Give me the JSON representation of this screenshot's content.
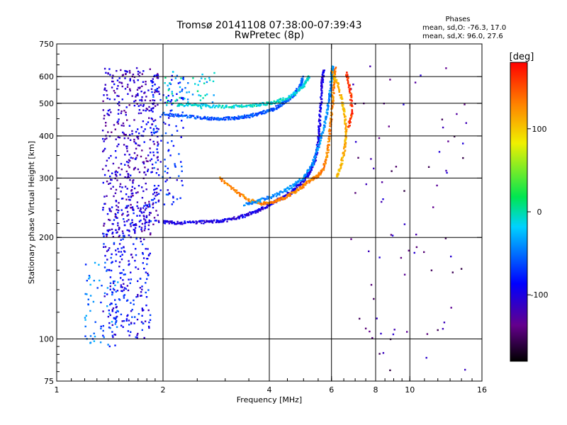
{
  "title_line1": "Tromsø 20141108 07:38:00-07:39:43",
  "title_line2": "RwPretec (8p)",
  "stats": {
    "heading": "Phases",
    "line_o": "mean, sd,O: -76.3, 17.0",
    "line_x": "mean, sd,X:  96.0, 27.6"
  },
  "colorbar": {
    "label": "[deg]",
    "range": [
      -180,
      180
    ],
    "ticks": [
      {
        "value": 100,
        "label": "100"
      },
      {
        "value": 0,
        "label": "0"
      },
      {
        "value": -100,
        "label": "-100"
      }
    ]
  },
  "chart_data": {
    "type": "scatter",
    "title": "Tromsø 20141108 07:38:00-07:39:43",
    "subtitle": "RwPretec (8p)",
    "xlabel": "Frequency [MHz]",
    "ylabel": "Stationary phase Virtual Height [km]",
    "xscale": "log",
    "yscale": "log",
    "xlim": [
      1,
      16
    ],
    "ylim": [
      75,
      750
    ],
    "xticks": [
      {
        "value": 1,
        "label": "1"
      },
      {
        "value": 2,
        "label": "2"
      },
      {
        "value": 4,
        "label": "4"
      },
      {
        "value": 6,
        "label": "6"
      },
      {
        "value": 8,
        "label": "8"
      },
      {
        "value": 10,
        "label": "10"
      },
      {
        "value": 16,
        "label": "16"
      }
    ],
    "yticks": [
      {
        "value": 75,
        "label": "75"
      },
      {
        "value": 100,
        "label": "100"
      },
      {
        "value": 200,
        "label": "200"
      },
      {
        "value": 300,
        "label": "300"
      },
      {
        "value": 400,
        "label": "400"
      },
      {
        "value": 500,
        "label": "500"
      },
      {
        "value": 600,
        "label": "600"
      },
      {
        "value": 750,
        "label": "750"
      }
    ],
    "grid_x": [
      2,
      4,
      6,
      8,
      10
    ],
    "grid_y": [
      100,
      200,
      300,
      400,
      500,
      600
    ],
    "color_variable": "phase [deg]",
    "traces": [
      {
        "points": [
          [
            2.0,
            222
          ],
          [
            2.2,
            221
          ],
          [
            2.5,
            222
          ],
          [
            2.8,
            223
          ],
          [
            3.1,
            226
          ],
          [
            3.4,
            232
          ],
          [
            3.7,
            240
          ],
          [
            4.0,
            250
          ],
          [
            4.3,
            260
          ],
          [
            4.6,
            272
          ],
          [
            4.9,
            288
          ],
          [
            5.2,
            310
          ],
          [
            5.4,
            340
          ],
          [
            5.5,
            380
          ],
          [
            5.55,
            430
          ],
          [
            5.6,
            500
          ],
          [
            5.65,
            580
          ],
          [
            5.7,
            630
          ]
        ],
        "phase": -100
      },
      {
        "points": [
          [
            2.9,
            300
          ],
          [
            3.2,
            275
          ],
          [
            3.5,
            258
          ],
          [
            3.8,
            252
          ],
          [
            4.1,
            255
          ],
          [
            4.4,
            262
          ],
          [
            4.7,
            272
          ],
          [
            5.0,
            285
          ],
          [
            5.3,
            298
          ],
          [
            5.5,
            305
          ],
          [
            5.7,
            320
          ],
          [
            5.85,
            360
          ],
          [
            5.95,
            420
          ],
          [
            6.05,
            500
          ],
          [
            6.1,
            580
          ],
          [
            6.15,
            640
          ]
        ],
        "phase": 130
      },
      {
        "points": [
          [
            3.4,
            250
          ],
          [
            3.8,
            258
          ],
          [
            4.2,
            268
          ],
          [
            4.6,
            282
          ],
          [
            5.0,
            300
          ],
          [
            5.3,
            330
          ],
          [
            5.5,
            370
          ],
          [
            5.7,
            420
          ],
          [
            5.85,
            480
          ],
          [
            5.95,
            540
          ],
          [
            6.0,
            600
          ],
          [
            6.05,
            650
          ]
        ],
        "phase": -40
      },
      {
        "points": [
          [
            2.0,
            465
          ],
          [
            2.3,
            458
          ],
          [
            2.6,
            452
          ],
          [
            2.9,
            450
          ],
          [
            3.2,
            452
          ],
          [
            3.5,
            458
          ],
          [
            3.8,
            468
          ],
          [
            4.1,
            480
          ],
          [
            4.4,
            500
          ],
          [
            4.7,
            530
          ],
          [
            4.9,
            565
          ],
          [
            5.0,
            600
          ]
        ],
        "phase": -60
      },
      {
        "points": [
          [
            2.2,
            495
          ],
          [
            2.6,
            492
          ],
          [
            3.0,
            488
          ],
          [
            3.4,
            490
          ],
          [
            3.8,
            496
          ],
          [
            4.2,
            505
          ],
          [
            4.6,
            525
          ],
          [
            5.0,
            560
          ],
          [
            5.2,
            600
          ]
        ],
        "phase": -10
      },
      {
        "points": [
          [
            6.0,
            620
          ],
          [
            6.3,
            560
          ],
          [
            6.5,
            480
          ],
          [
            6.6,
            420
          ],
          [
            6.55,
            370
          ],
          [
            6.4,
            330
          ],
          [
            6.2,
            300
          ]
        ],
        "phase": 110
      },
      {
        "points": [
          [
            6.6,
            620
          ],
          [
            6.8,
            540
          ],
          [
            6.85,
            470
          ],
          [
            6.7,
            420
          ]
        ],
        "phase": 160
      }
    ],
    "clouds": [
      {
        "xmin": 1.35,
        "xmax": 1.95,
        "ymin": 200,
        "ymax": 640,
        "count": 500,
        "phase": -110
      },
      {
        "xmin": 1.35,
        "xmax": 1.85,
        "ymin": 100,
        "ymax": 250,
        "count": 260,
        "phase": -90
      },
      {
        "xmin": 1.2,
        "xmax": 1.5,
        "ymin": 95,
        "ymax": 175,
        "count": 70,
        "phase": -50
      },
      {
        "xmin": 1.85,
        "xmax": 2.3,
        "ymin": 250,
        "ymax": 620,
        "count": 130,
        "phase": -80
      },
      {
        "xmin": 2.0,
        "xmax": 2.8,
        "ymin": 480,
        "ymax": 620,
        "count": 60,
        "phase": -20
      },
      {
        "xmin": 6.8,
        "xmax": 14.5,
        "ymin": 80,
        "ymax": 650,
        "count": 80,
        "phase": -130
      }
    ]
  }
}
